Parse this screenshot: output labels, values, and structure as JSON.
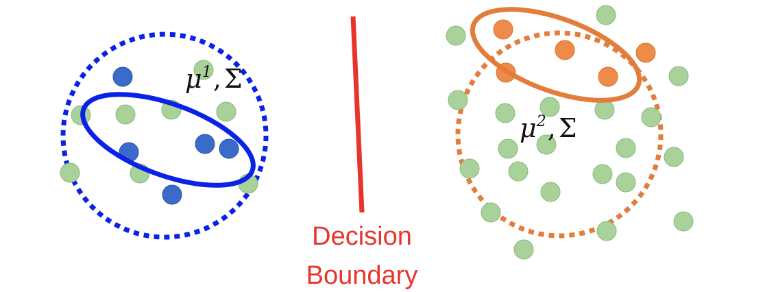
{
  "colors": {
    "class1": "#3A6BC8",
    "class1_stroke": "#2B55A6",
    "class2": "#EE8A4A",
    "class2_stroke": "#D8722F",
    "unlabeled": "#A9D29A",
    "unlabeled_stroke": "#88B878",
    "boundary": "#E8352C",
    "cov1": "#0A22E6",
    "cov2": "#E27D3C"
  },
  "cluster1": {
    "mean_label": "μ",
    "mean_sup": "1",
    "sep": ",",
    "cov_label": "Σ"
  },
  "cluster2": {
    "mean_label": "μ",
    "mean_sup": "2",
    "sep": ",",
    "cov_label": "Σ"
  },
  "boundary": {
    "line1": "Decision",
    "line2": "Boundary"
  }
}
